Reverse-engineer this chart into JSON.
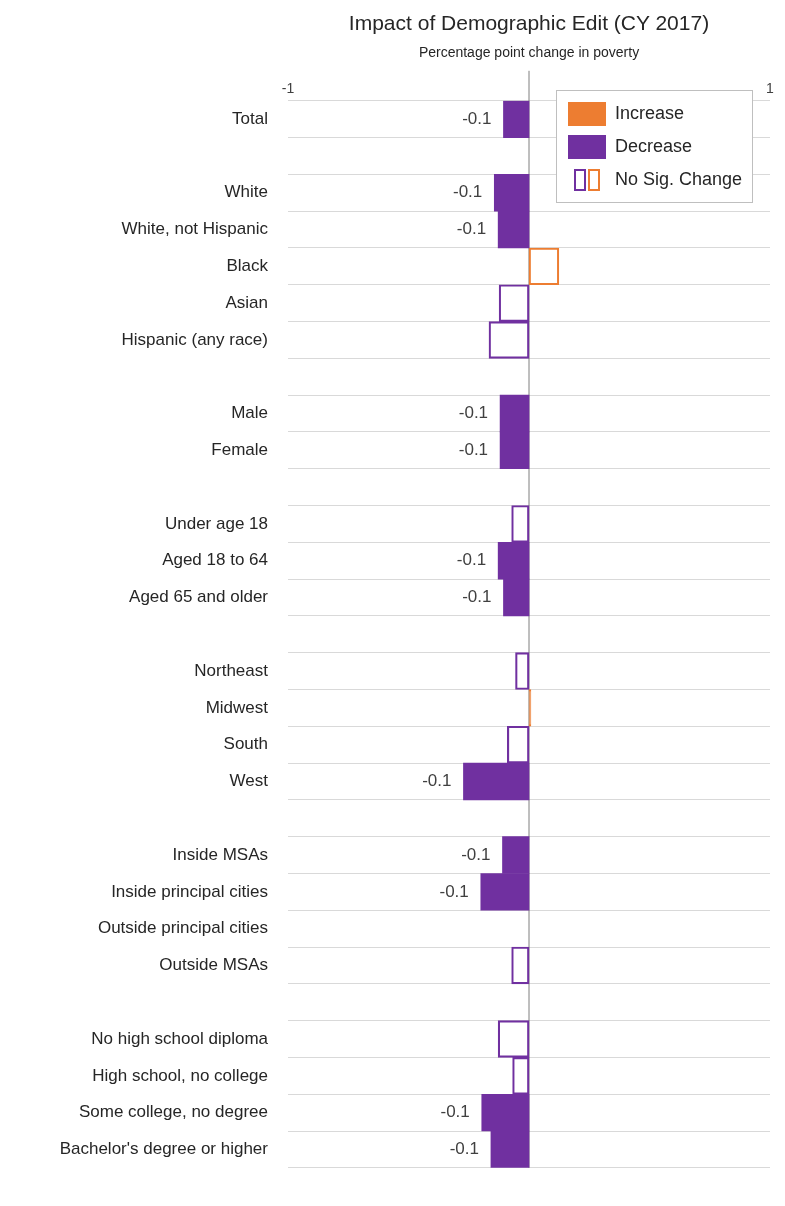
{
  "chart_data": {
    "type": "bar",
    "orientation": "horizontal",
    "title": "Impact of Demographic Edit (CY 2017)",
    "subtitle": "Percentage point change in poverty",
    "categories": [
      "Total",
      null,
      "White",
      "White, not Hispanic",
      "Black",
      "Asian",
      "Hispanic (any race)",
      null,
      "Male",
      "Female",
      null,
      "Under age 18",
      "Aged 18 to 64",
      "Aged 65 and older",
      null,
      "Northeast",
      "Midwest",
      "South",
      "West",
      null,
      "Inside MSAs",
      "Inside principal cities",
      "Outside principal cities",
      "Outside MSAs",
      null,
      "No high school diploma",
      "High school, no college",
      "Some college, no degree",
      "Bachelor's degree or higher"
    ],
    "series": [
      {
        "name": "Increase",
        "color": "#ed7d31",
        "values": [
          null,
          null,
          null,
          null,
          null,
          null,
          null,
          null,
          null,
          null,
          null,
          null,
          null,
          null,
          null,
          null,
          null,
          null,
          null,
          null,
          null,
          null,
          null,
          null,
          null,
          null,
          null,
          null,
          null
        ]
      },
      {
        "name": "Decrease",
        "color": "#7030a0",
        "values": [
          -0.053,
          null,
          -0.072,
          -0.064,
          null,
          null,
          null,
          null,
          -0.06,
          -0.06,
          null,
          null,
          -0.064,
          -0.053,
          null,
          null,
          null,
          null,
          -0.136,
          null,
          -0.055,
          -0.1,
          null,
          null,
          null,
          null,
          null,
          -0.098,
          -0.079
        ],
        "value_labels": [
          "-0.1",
          null,
          "-0.1",
          "-0.1",
          null,
          null,
          null,
          null,
          "-0.1",
          "-0.1",
          null,
          null,
          "-0.1",
          "-0.1",
          null,
          null,
          null,
          null,
          "-0.1",
          null,
          "-0.1",
          "-0.1",
          null,
          null,
          null,
          null,
          null,
          "-0.1",
          "-0.1"
        ]
      },
      {
        "name": "No Sig. Change",
        "color": "#7030a0",
        "values": [
          null,
          null,
          null,
          null,
          0.062,
          -0.062,
          -0.083,
          null,
          null,
          null,
          null,
          -0.036,
          null,
          null,
          null,
          -0.028,
          0.004,
          -0.045,
          null,
          null,
          null,
          null,
          0,
          -0.036,
          null,
          -0.064,
          -0.034,
          null,
          null
        ],
        "colors": [
          "#7030a0",
          "#7030a0",
          "#7030a0",
          "#7030a0",
          "#ed7d31",
          "#7030a0",
          "#7030a0",
          "#7030a0",
          "#7030a0",
          "#7030a0",
          "#7030a0",
          "#7030a0",
          "#7030a0",
          "#7030a0",
          "#7030a0",
          "#7030a0",
          "#ed7d31",
          "#7030a0",
          "#7030a0",
          "#7030a0",
          "#7030a0",
          "#7030a0",
          "#7030a0",
          "#7030a0",
          "#7030a0",
          "#7030a0",
          "#7030a0",
          "#7030a0",
          "#7030a0"
        ]
      }
    ],
    "xlim": [
      -0.5,
      0.5
    ],
    "xticks": [
      {
        "value": -0.5,
        "label": "-1"
      },
      {
        "value": 0.5,
        "label": "1"
      }
    ],
    "grid": "y",
    "legend": "top right"
  }
}
